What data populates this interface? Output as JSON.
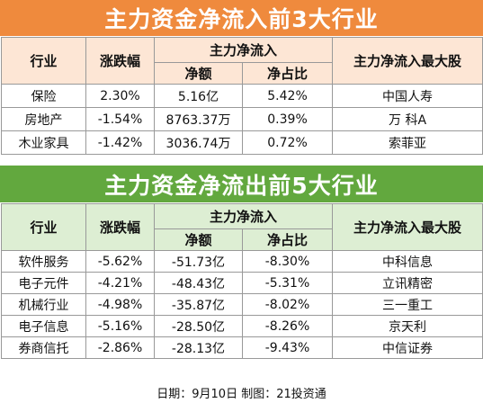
{
  "inflow": {
    "title": "主力资金净流入前3大行业",
    "headers": {
      "industry": "行业",
      "change": "涨跌幅",
      "net_flow_group": "主力净流入",
      "net_amount": "净额",
      "net_ratio": "净占比",
      "top_stock": "主力净流入最大股"
    },
    "rows": [
      {
        "industry": "保险",
        "change": "2.30%",
        "net_amount": "5.16亿",
        "net_ratio": "5.42%",
        "top_stock": "中国人寿"
      },
      {
        "industry": "房地产",
        "change": "-1.54%",
        "net_amount": "8763.37万",
        "net_ratio": "0.39%",
        "top_stock": "万 科A"
      },
      {
        "industry": "木业家具",
        "change": "-1.42%",
        "net_amount": "3036.74万",
        "net_ratio": "0.72%",
        "top_stock": "索菲亚"
      }
    ]
  },
  "outflow": {
    "title": "主力资金净流出前5大行业",
    "headers": {
      "industry": "行业",
      "change": "涨跌幅",
      "net_flow_group": "主力净流入",
      "net_amount": "净额",
      "net_ratio": "净占比",
      "top_stock": "主力净流入最大股"
    },
    "rows": [
      {
        "industry": "软件服务",
        "change": "-5.62%",
        "net_amount": "-51.73亿",
        "net_ratio": "-8.30%",
        "top_stock": "中科信息"
      },
      {
        "industry": "电子元件",
        "change": "-4.21%",
        "net_amount": "-48.43亿",
        "net_ratio": "-5.31%",
        "top_stock": "立讯精密"
      },
      {
        "industry": "机械行业",
        "change": "-4.98%",
        "net_amount": "-35.87亿",
        "net_ratio": "-8.02%",
        "top_stock": "三一重工"
      },
      {
        "industry": "电子信息",
        "change": "-5.16%",
        "net_amount": "-28.50亿",
        "net_ratio": "-8.26%",
        "top_stock": "京天利"
      },
      {
        "industry": "券商信托",
        "change": "-2.86%",
        "net_amount": "-28.13亿",
        "net_ratio": "-9.43%",
        "top_stock": "中信证券"
      }
    ]
  },
  "footer": "日期：9月10日 制图：21投资通",
  "colors": {
    "inflow_banner": "#ef8a3d",
    "inflow_header": "#fde6d5",
    "outflow_banner": "#62a83e",
    "outflow_header": "#ddeed3"
  }
}
